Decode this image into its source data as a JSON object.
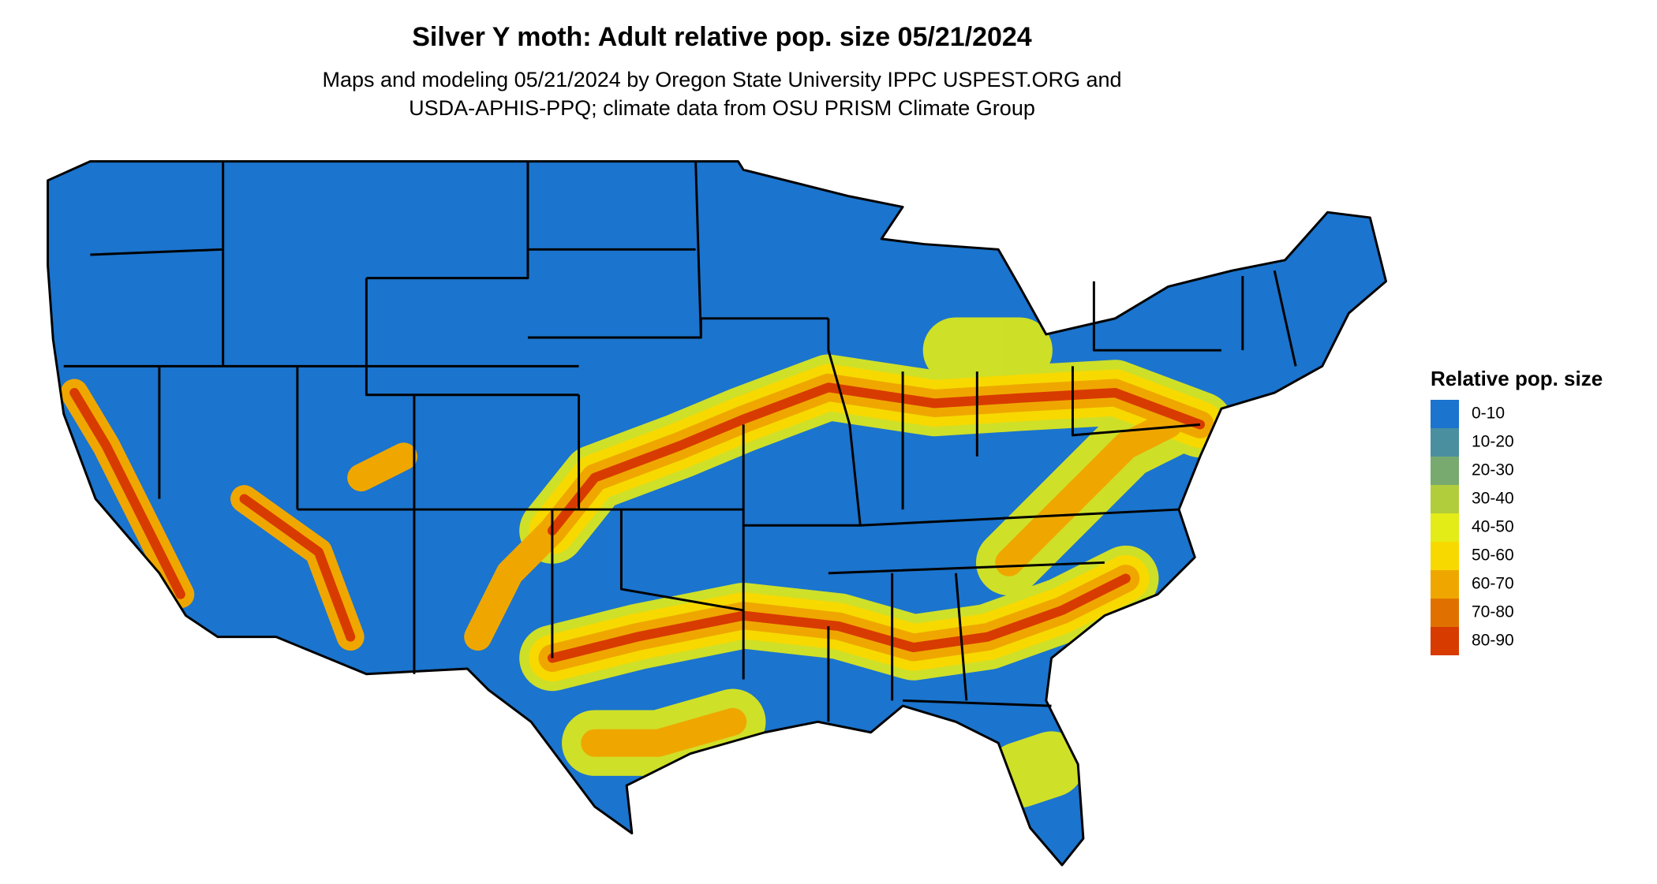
{
  "header": {
    "title": "Silver Y moth: Adult relative pop. size 05/21/2024",
    "subtitle": [
      "Maps and modeling 05/21/2024 by Oregon State University IPPC USPEST.ORG and",
      "USDA-APHIS-PPQ; climate data from OSU PRISM Climate Group"
    ]
  },
  "legend": {
    "title": "Relative pop. size",
    "items": [
      {
        "label": "0-10",
        "color": "#1b74cd"
      },
      {
        "label": "10-20",
        "color": "#4a8fa0"
      },
      {
        "label": "20-30",
        "color": "#78aa6f"
      },
      {
        "label": "30-40",
        "color": "#b2cd3b"
      },
      {
        "label": "40-50",
        "color": "#e3ec17"
      },
      {
        "label": "50-60",
        "color": "#f7d900"
      },
      {
        "label": "60-70",
        "color": "#efa700"
      },
      {
        "label": "70-80",
        "color": "#e07100"
      },
      {
        "label": "80-90",
        "color": "#d83b00"
      }
    ]
  }
}
